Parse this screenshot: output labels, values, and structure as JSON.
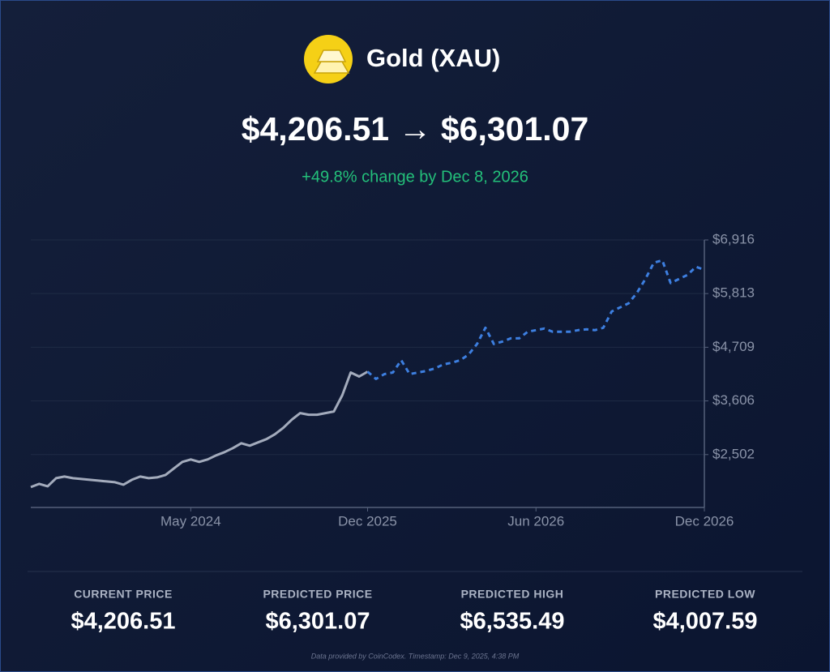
{
  "header": {
    "title": "Gold (XAU)",
    "price_range": "$4,206.51 → $6,301.07",
    "change": "+49.8% change by Dec 8, 2026"
  },
  "chart_data": {
    "type": "line",
    "categories": [
      null,
      null,
      null,
      null,
      null,
      null,
      null,
      null,
      null,
      null,
      null,
      null,
      null,
      null,
      null,
      null,
      null,
      null,
      null,
      "May 2024",
      null,
      null,
      null,
      null,
      null,
      null,
      null,
      null,
      null,
      null,
      null,
      null,
      null,
      null,
      null,
      null,
      null,
      null,
      null,
      null,
      "Dec 2025",
      null,
      null,
      null,
      null,
      null,
      null,
      null,
      null,
      null,
      null,
      null,
      null,
      null,
      null,
      null,
      null,
      null,
      null,
      null,
      "Jun 2026",
      null,
      null,
      null,
      null,
      null,
      null,
      null,
      null,
      null,
      null,
      null,
      null,
      null,
      null,
      null,
      null,
      null,
      null,
      null,
      "Dec 2026"
    ],
    "series": [
      {
        "color": "#a3abbc",
        "values": [
          1833,
          1900,
          1850,
          2017,
          2050,
          2017,
          2000,
          1984,
          1967,
          1950,
          1933,
          1883,
          1984,
          2050,
          2017,
          2034,
          2084,
          2218,
          2352,
          2402,
          2352,
          2402,
          2485,
          2552,
          2636,
          2736,
          2686,
          2753,
          2820,
          2920,
          3054,
          3221,
          3355,
          3322,
          3322,
          3355,
          3388,
          3723,
          4191,
          4107,
          4206.51,
          null,
          null,
          null,
          null,
          null,
          null,
          null,
          null,
          null,
          null,
          null,
          null,
          null,
          null,
          null,
          null,
          null,
          null,
          null,
          null,
          null,
          null,
          null,
          null,
          null,
          null,
          null,
          null,
          null,
          null,
          null,
          null,
          null,
          null,
          null,
          null,
          null,
          null,
          null,
          null
        ]
      },
      {
        "color": "#3d7fe0",
        "dashed": true,
        "values": [
          null,
          null,
          null,
          null,
          null,
          null,
          null,
          null,
          null,
          null,
          null,
          null,
          null,
          null,
          null,
          null,
          null,
          null,
          null,
          null,
          null,
          null,
          null,
          null,
          null,
          null,
          null,
          null,
          null,
          null,
          null,
          null,
          null,
          null,
          null,
          null,
          null,
          null,
          null,
          null,
          4206.51,
          4057,
          4157,
          4191,
          4442,
          4157,
          4191,
          4224,
          4274,
          4358,
          4391,
          4442,
          4559,
          4776,
          5110,
          4776,
          4826,
          4893,
          4893,
          5027,
          5060,
          5094,
          5027,
          5027,
          5027,
          5060,
          5077,
          5060,
          5110,
          5445,
          5529,
          5612,
          5830,
          6114,
          6448,
          6498,
          6030,
          6114,
          6197,
          6365,
          6301.07
        ]
      }
    ],
    "ylim": [
      1415,
      6916
    ],
    "yticks": [
      {
        "value": 2502,
        "label": "$2,502"
      },
      {
        "value": 3606,
        "label": "$3,606"
      },
      {
        "value": 4709,
        "label": "$4,709"
      },
      {
        "value": 5813,
        "label": "$5,813"
      },
      {
        "value": 6916,
        "label": "$6,916"
      }
    ],
    "grid": true
  },
  "stats": [
    {
      "label": "CURRENT PRICE",
      "value": "$4,206.51"
    },
    {
      "label": "PREDICTED PRICE",
      "value": "$6,301.07"
    },
    {
      "label": "PREDICTED HIGH",
      "value": "$6,535.49"
    },
    {
      "label": "PREDICTED LOW",
      "value": "$4,007.59"
    }
  ],
  "footer": "Data provided by CoinCodex. Timestamp: Dec 9, 2025, 4:38 PM"
}
